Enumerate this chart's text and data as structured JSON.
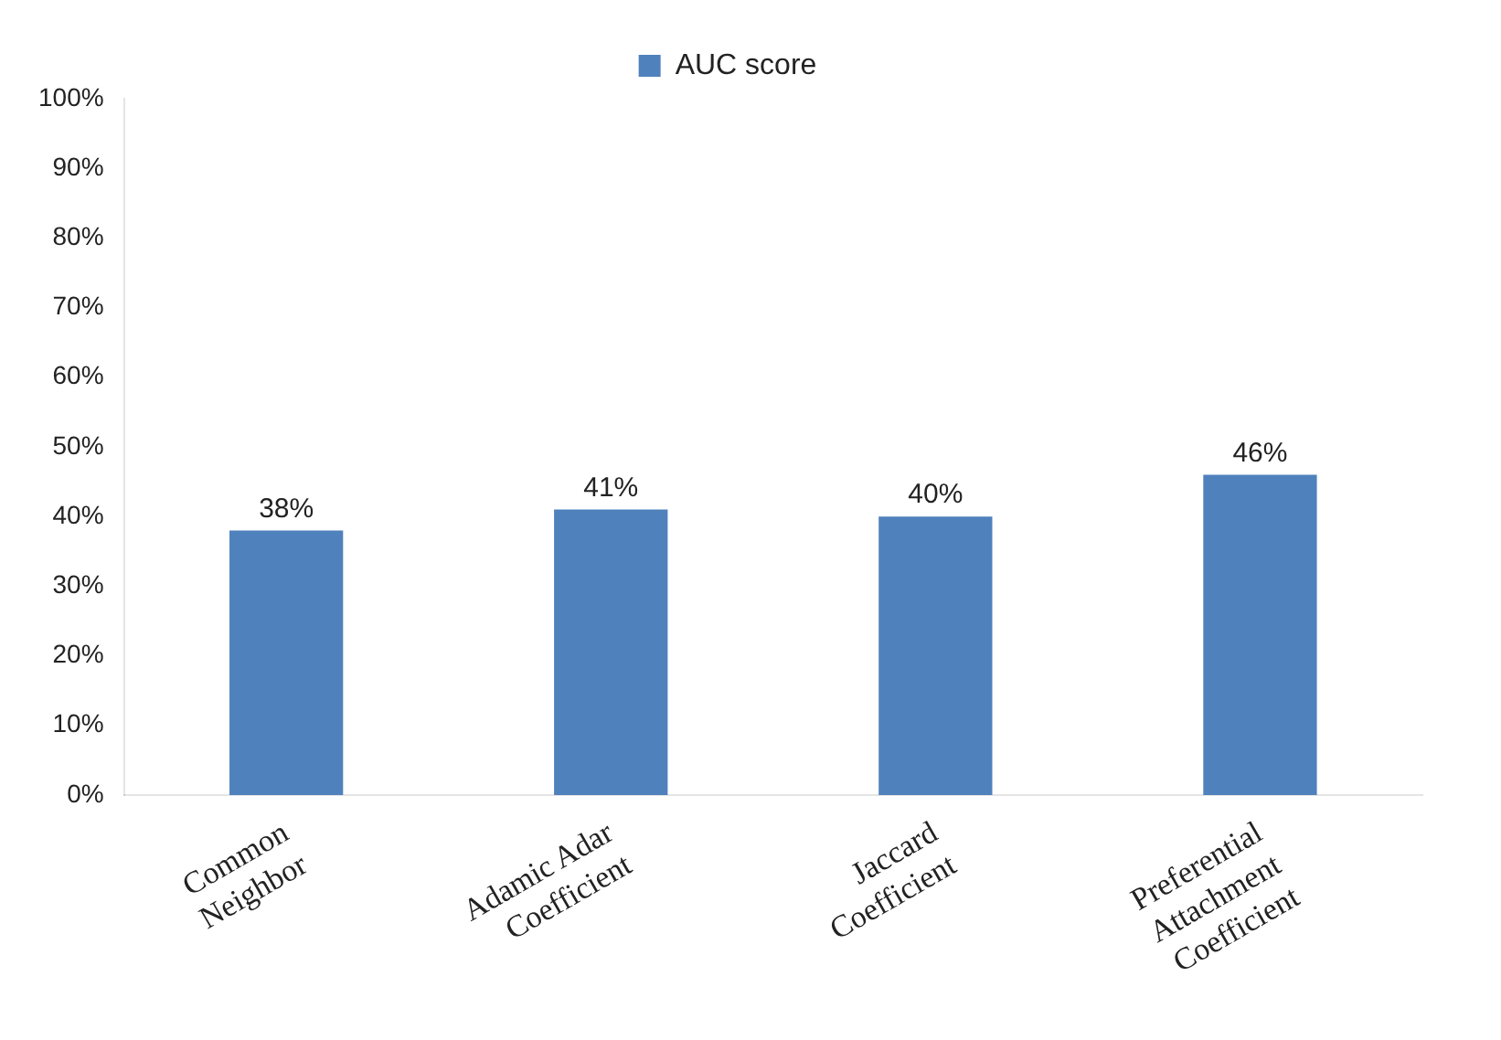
{
  "chart_data": {
    "type": "bar",
    "categories": [
      "Common Neighbor",
      "Adamic Adar Coefficient",
      "Jaccard Coefficient",
      "Preferential Attachment Coefficient"
    ],
    "series": [
      {
        "name": "AUC score",
        "color": "#4f81bd",
        "values": [
          38,
          41,
          40,
          46
        ],
        "value_labels": [
          "38%",
          "41%",
          "40%",
          "46%"
        ]
      }
    ],
    "ylim": [
      0,
      100
    ],
    "yticks": [
      {
        "value": 0,
        "label": "0%"
      },
      {
        "value": 10,
        "label": "10%"
      },
      {
        "value": 20,
        "label": "20%"
      },
      {
        "value": 30,
        "label": "30%"
      },
      {
        "value": 40,
        "label": "40%"
      },
      {
        "value": 50,
        "label": "50%"
      },
      {
        "value": 60,
        "label": "60%"
      },
      {
        "value": 70,
        "label": "70%"
      },
      {
        "value": 80,
        "label": "80%"
      },
      {
        "value": 90,
        "label": "90%"
      },
      {
        "value": 100,
        "label": "100%"
      }
    ],
    "grid": false,
    "legend": "top"
  }
}
